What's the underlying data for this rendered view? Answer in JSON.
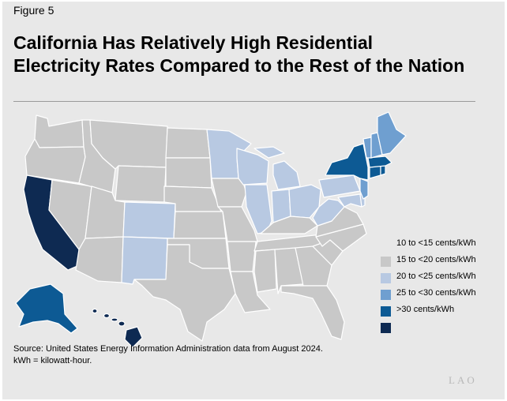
{
  "figure_label": "Figure 5",
  "title_line1": "California Has Relatively High Residential",
  "title_line2": "Electricity Rates Compared to the Rest of the Nation",
  "legend": {
    "items": [
      {
        "label": "10 to <15 cents/kWh",
        "color": ""
      },
      {
        "label": "15 to <20 cents/kWh",
        "color": "#c8c8c8"
      },
      {
        "label": "20 to <25 cents/kWh",
        "color": "#b8c9e2"
      },
      {
        "label": "25 to <30 cents/kWh",
        "color": "#6f9fd0"
      },
      {
        "label": ">30 cents/kWh",
        "color": "#0d5a94"
      },
      {
        "label": "",
        "color": "#0e2a52"
      }
    ]
  },
  "source_line1": "Source: United States Energy Information Administration data from August 2024.",
  "source_line2": "kWh = kilowatt-hour.",
  "logo_text": "LAO",
  "colors": {
    "tier_15_20": "#c8c8c8",
    "tier_20_25": "#b8c9e2",
    "tier_25_30": "#6f9fd0",
    "tier_30_plus": "#0d5a94",
    "tier_top": "#0e2a52",
    "state_border": "#ffffff"
  }
}
